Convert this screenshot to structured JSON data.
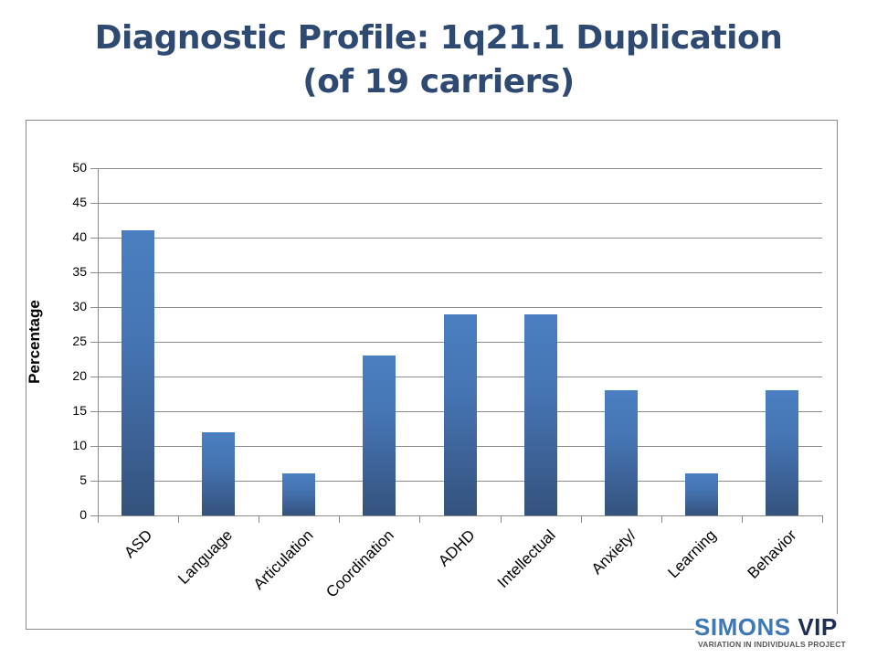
{
  "slide": {
    "title_line1": "Diagnostic Profile: 1q21.1 Duplication",
    "title_line2": "(of 19 carriers)"
  },
  "logo": {
    "brand": "SIMONS",
    "brand_accent": "VIP",
    "tagline": "VARIATION IN INDIVIDUALS PROJECT",
    "colors": {
      "simons": "#3f79b5",
      "vip": "#1d2e55"
    }
  },
  "chart_data": {
    "type": "bar",
    "title": "Diagnostic Profile: 1q21.1 Duplication (of 19 carriers)",
    "xlabel": "",
    "ylabel": "Percentage",
    "ylim": [
      0,
      50
    ],
    "yticks": [
      "0",
      "5",
      "10",
      "15",
      "20",
      "25",
      "30",
      "35",
      "40",
      "45",
      "50"
    ],
    "grid": true,
    "legend": null,
    "categories": [
      "ASD",
      "Language",
      "Articulation",
      "Coordination",
      "ADHD",
      "Intellectual",
      "Anxiety/",
      "Learning",
      "Behavior"
    ],
    "values": [
      41,
      12,
      6,
      23,
      29,
      29,
      18,
      6,
      18
    ],
    "bar_color_top": "#4a7fc1",
    "bar_color_bottom": "#34527c"
  }
}
